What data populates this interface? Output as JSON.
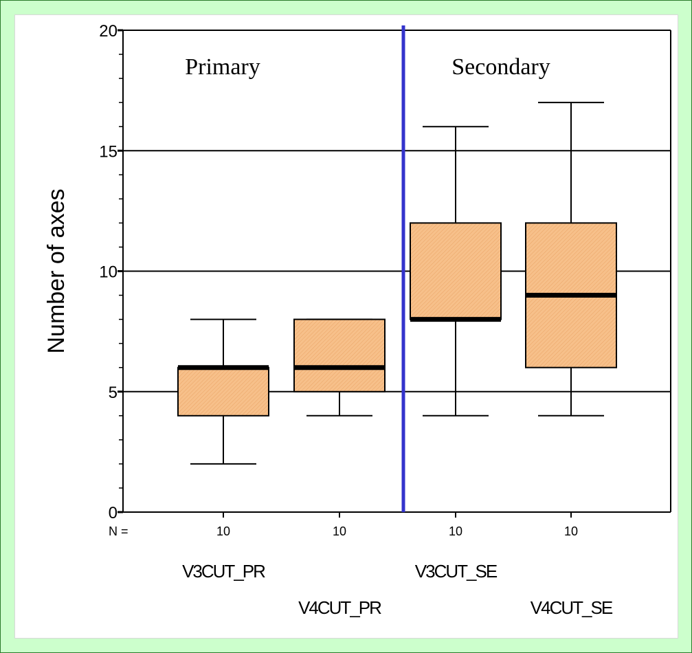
{
  "chart_data": {
    "type": "box",
    "ylabel": "Number of axes",
    "ylim": [
      0,
      20
    ],
    "yticks": [
      0,
      5,
      10,
      15,
      20
    ],
    "grid": "horizontal",
    "n_label": "N =",
    "regions": [
      {
        "label": "Primary"
      },
      {
        "label": "Secondary"
      }
    ],
    "categories": [
      "V3CUT_PR",
      "V4CUT_PR",
      "V3CUT_SE",
      "V4CUT_SE"
    ],
    "boxes": [
      {
        "category": "V3CUT_PR",
        "n": 10,
        "min": 2,
        "q1": 4,
        "median": 6,
        "q3": 6,
        "max": 8
      },
      {
        "category": "V4CUT_PR",
        "n": 10,
        "min": 4,
        "q1": 5,
        "median": 6,
        "q3": 8,
        "max": 8
      },
      {
        "category": "V3CUT_SE",
        "n": 10,
        "min": 4,
        "q1": 8,
        "median": 8,
        "q3": 12,
        "max": 16
      },
      {
        "category": "V4CUT_SE",
        "n": 10,
        "min": 4,
        "q1": 6,
        "median": 9,
        "q3": 12,
        "max": 17
      }
    ],
    "box_color": "#f7c08a",
    "divider_color": "#3333cc"
  }
}
